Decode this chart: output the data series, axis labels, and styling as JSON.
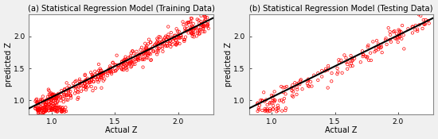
{
  "title_a": "(a) Statistical Regression Model (Training Data)",
  "title_b": "(b) Statistical Regression Model (Testing Data)",
  "xlabel": "Actual Z",
  "ylabel": "predicted Z",
  "xlim": [
    0.82,
    2.28
  ],
  "ylim": [
    0.78,
    2.35
  ],
  "xticks": [
    1.0,
    1.5,
    2.0
  ],
  "yticks": [
    1.0,
    1.5,
    2.0
  ],
  "scatter_color": "#FF0000",
  "line_color": "#000000",
  "bg_color": "#f0f0f0",
  "panel_bg": "#ffffff",
  "border_color": "#888888",
  "seed_train": 42,
  "seed_test": 99,
  "n_train": 500,
  "n_test": 160,
  "title_fontsize": 7.2,
  "axis_label_fontsize": 7,
  "tick_fontsize": 6.5,
  "marker_size": 6,
  "line_width": 1.5,
  "line_slope": 0.97,
  "line_intercept": 0.08
}
